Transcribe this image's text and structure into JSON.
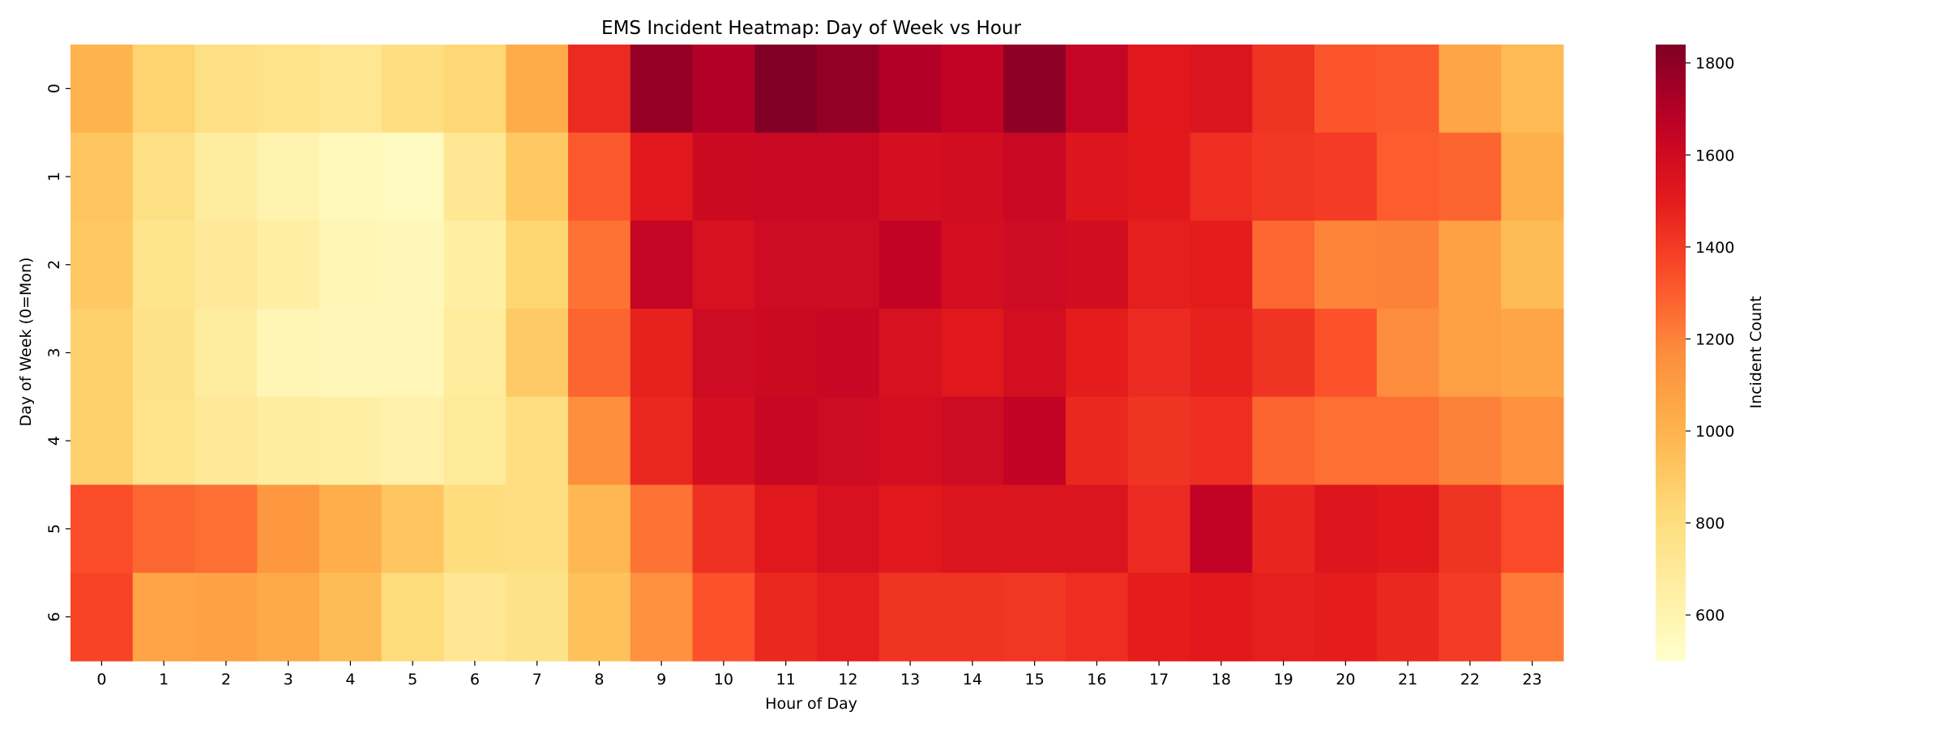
{
  "chart_data": {
    "type": "heatmap",
    "title": "EMS Incident Heatmap: Day of Week vs Hour",
    "xlabel": "Hour of Day",
    "ylabel": "Day of Week (0=Mon)",
    "colorbar_label": "Incident Count",
    "colormap": "YlOrRd",
    "vmin": 500,
    "vmax": 1840,
    "colorbar_ticks": [
      600,
      800,
      1000,
      1200,
      1400,
      1600,
      1800
    ],
    "x_ticks": [
      "0",
      "1",
      "2",
      "3",
      "4",
      "5",
      "6",
      "7",
      "8",
      "9",
      "10",
      "11",
      "12",
      "13",
      "14",
      "15",
      "16",
      "17",
      "18",
      "19",
      "20",
      "21",
      "22",
      "23"
    ],
    "y_ticks": [
      "0",
      "1",
      "2",
      "3",
      "4",
      "5",
      "6"
    ],
    "values": [
      [
        1000,
        860,
        780,
        750,
        730,
        790,
        840,
        1030,
        1450,
        1780,
        1700,
        1840,
        1790,
        1700,
        1650,
        1800,
        1640,
        1520,
        1540,
        1420,
        1320,
        1310,
        1060,
        970
      ],
      [
        920,
        780,
        670,
        610,
        560,
        550,
        720,
        910,
        1310,
        1520,
        1610,
        1620,
        1620,
        1570,
        1590,
        1620,
        1530,
        1510,
        1440,
        1410,
        1400,
        1300,
        1280,
        1010
      ],
      [
        910,
        740,
        700,
        650,
        590,
        570,
        650,
        850,
        1240,
        1640,
        1560,
        1600,
        1600,
        1650,
        1580,
        1600,
        1590,
        1490,
        1500,
        1270,
        1190,
        1200,
        1080,
        960
      ],
      [
        870,
        760,
        670,
        590,
        570,
        580,
        680,
        900,
        1280,
        1480,
        1600,
        1610,
        1630,
        1560,
        1520,
        1580,
        1500,
        1450,
        1480,
        1420,
        1330,
        1170,
        1090,
        1060
      ],
      [
        870,
        750,
        700,
        670,
        650,
        630,
        690,
        790,
        1160,
        1460,
        1570,
        1630,
        1600,
        1580,
        1600,
        1650,
        1460,
        1420,
        1440,
        1280,
        1250,
        1250,
        1200,
        1150
      ],
      [
        1340,
        1270,
        1250,
        1120,
        1020,
        920,
        800,
        790,
        980,
        1240,
        1430,
        1520,
        1560,
        1520,
        1540,
        1540,
        1540,
        1450,
        1650,
        1470,
        1530,
        1510,
        1420,
        1350
      ],
      [
        1370,
        1070,
        1080,
        1040,
        960,
        810,
        720,
        760,
        940,
        1150,
        1330,
        1460,
        1490,
        1420,
        1420,
        1410,
        1440,
        1500,
        1510,
        1490,
        1500,
        1460,
        1400,
        1220
      ]
    ]
  }
}
